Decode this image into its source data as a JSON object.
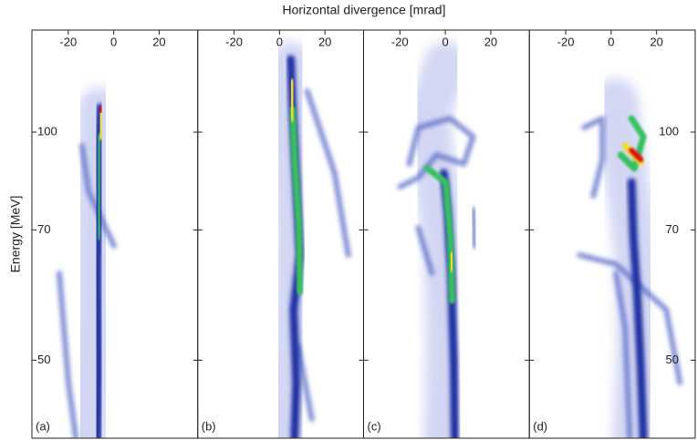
{
  "figure": {
    "xlabel": "Horizontal divergence [mrad]",
    "ylabel": "Energy [MeV]"
  },
  "chart_data": [
    {
      "type": "heatmap",
      "label": "(a)",
      "xlim": [
        -36,
        37
      ],
      "xticks": [
        -20,
        0,
        20
      ],
      "ylim": [
        42.7,
        181
      ],
      "yscale": "inverse",
      "yticks": [
        50,
        70,
        100
      ],
      "ytick_labels": "left"
    },
    {
      "type": "heatmap",
      "label": "(b)",
      "xlim": [
        -36,
        37
      ],
      "xticks": [
        -20,
        0,
        20
      ],
      "ylim": [
        42.7,
        181
      ],
      "yscale": "inverse",
      "yticks": [
        50,
        70,
        100
      ],
      "ytick_labels": "none"
    },
    {
      "type": "heatmap",
      "label": "(c)",
      "xlim": [
        -36,
        37
      ],
      "xticks": [
        -20,
        0,
        20
      ],
      "ylim": [
        42.7,
        181
      ],
      "yscale": "inverse",
      "yticks": [
        50,
        70,
        100
      ],
      "ytick_labels": "none"
    },
    {
      "type": "heatmap",
      "label": "(d)",
      "xlim": [
        -36,
        37
      ],
      "xticks": [
        -20,
        0,
        20
      ],
      "ylim": [
        42.7,
        181
      ],
      "yscale": "inverse",
      "yticks": [
        50,
        70,
        100
      ],
      "ytick_labels": "right"
    }
  ]
}
